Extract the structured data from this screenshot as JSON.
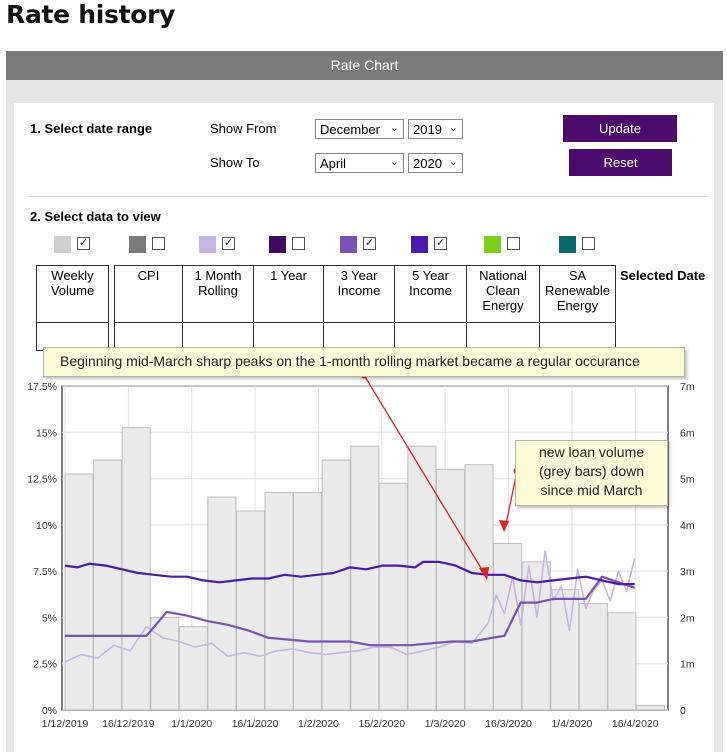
{
  "page_title": "Rate history",
  "panel_title": "Rate Chart",
  "controls": {
    "step1_label": "1. Select date range",
    "show_from_label": "Show From",
    "show_to_label": "Show To",
    "from_month": "December",
    "from_year": "2019",
    "to_month": "April",
    "to_year": "2020",
    "update_label": "Update",
    "reset_label": "Reset",
    "step2_label": "2. Select data to view"
  },
  "series_toggles": [
    {
      "name": "Weekly Volume",
      "color": "#cfcfcf",
      "checked": true
    },
    {
      "name": "CPI",
      "color": "#7a7a7a",
      "checked": false
    },
    {
      "name": "1 Month Rolling",
      "color": "#c7b6e4",
      "checked": true
    },
    {
      "name": "1 Year",
      "color": "#3f0a63",
      "checked": false
    },
    {
      "name": "3 Year Income",
      "color": "#7a51b6",
      "checked": true
    },
    {
      "name": "5 Year Income",
      "color": "#4a1ab0",
      "checked": true
    },
    {
      "name": "National Clean Energy",
      "color": "#7ccf1a",
      "checked": false
    },
    {
      "name": "SA Renewable Energy",
      "color": "#0a6a6a",
      "checked": false
    }
  ],
  "table_headers": {
    "weekly_volume": [
      "Weekly",
      "Volume"
    ],
    "cpi": [
      "CPI"
    ],
    "one_month": [
      "1 Month",
      "Rolling"
    ],
    "one_year": [
      "1 Year"
    ],
    "three_year": [
      "3 Year",
      "Income"
    ],
    "five_year": [
      "5 Year",
      "Income"
    ],
    "national": [
      "National",
      "Clean",
      "Energy"
    ],
    "sa": [
      "SA",
      "Renewable",
      "Energy"
    ],
    "selected_date": "Selected Date"
  },
  "annotations": {
    "top": "Beginning mid-March sharp peaks on the 1-month rolling market became a regular occurance",
    "side_lines": [
      "new loan volume",
      "(grey bars) down",
      "since mid March"
    ]
  },
  "chart_data": {
    "type": "bar",
    "x_tick_labels": [
      "1/12/2019",
      "16/12/2019",
      "1/1/2020",
      "16/1/2020",
      "1/2/2020",
      "15/2/2020",
      "1/3/2020",
      "16/3/2020",
      "1/4/2020",
      "16/4/2020"
    ],
    "y_left_ticks": [
      "0%",
      "2.5%",
      "5%",
      "7.5%",
      "10%",
      "12.5%",
      "15%",
      "17.5%"
    ],
    "y_right_ticks": [
      "0",
      "1m",
      "2m",
      "3m",
      "4m",
      "5m",
      "6m",
      "7m"
    ],
    "y_left_range": [
      0,
      17.5
    ],
    "y_right_range": [
      0,
      7
    ],
    "grid": true,
    "weekly_volume_m": [
      5.1,
      5.4,
      6.1,
      2.0,
      1.8,
      4.6,
      4.3,
      4.7,
      4.7,
      5.4,
      5.7,
      4.9,
      5.7,
      5.2,
      5.3,
      3.6,
      3.2,
      2.6,
      2.3,
      2.1,
      0.1
    ],
    "series": [
      {
        "name": "5 Year Income",
        "color": "#4a1ab0",
        "x": [
          0,
          3,
          6,
          10,
          14,
          18,
          22,
          26,
          30,
          34,
          38,
          42,
          46,
          50,
          54,
          58,
          62,
          66,
          70,
          74,
          78,
          82,
          86,
          88,
          90,
          92,
          94,
          96,
          100,
          104,
          108,
          112,
          116,
          120,
          124,
          128,
          132,
          136,
          140
        ],
        "y": [
          7.8,
          7.7,
          7.9,
          7.8,
          7.6,
          7.4,
          7.3,
          7.2,
          7.2,
          7.0,
          6.9,
          7.0,
          7.1,
          7.1,
          7.3,
          7.2,
          7.3,
          7.4,
          7.7,
          7.6,
          7.8,
          7.8,
          7.7,
          8.0,
          8.0,
          8.0,
          7.9,
          7.8,
          7.4,
          7.3,
          7.3,
          7.0,
          6.9,
          7.0,
          7.1,
          7.2,
          7.0,
          6.8,
          6.8
        ]
      },
      {
        "name": "3 Year Income",
        "color": "#7a51b6",
        "x": [
          0,
          5,
          10,
          15,
          20,
          25,
          30,
          35,
          40,
          45,
          50,
          55,
          60,
          65,
          70,
          75,
          80,
          85,
          90,
          95,
          100,
          105,
          108,
          112,
          116,
          120,
          124,
          128,
          132,
          136,
          140
        ],
        "y": [
          4.0,
          4.0,
          4.0,
          4.0,
          4.0,
          5.3,
          5.1,
          4.8,
          4.6,
          4.3,
          3.9,
          3.8,
          3.7,
          3.7,
          3.7,
          3.5,
          3.5,
          3.5,
          3.6,
          3.7,
          3.7,
          3.9,
          4.0,
          5.8,
          5.8,
          6.0,
          6.0,
          6.0,
          7.2,
          6.9,
          6.6
        ]
      },
      {
        "name": "1 Month Rolling",
        "color": "#c7b6e4",
        "x": [
          0,
          4,
          8,
          12,
          16,
          20,
          24,
          28,
          32,
          36,
          40,
          44,
          48,
          52,
          56,
          60,
          64,
          68,
          72,
          76,
          80,
          84,
          88,
          92,
          96,
          100,
          104,
          106,
          108,
          110,
          112,
          114,
          116,
          118,
          120,
          122,
          124,
          126,
          128,
          130,
          132,
          134,
          136,
          138,
          140
        ],
        "y": [
          2.6,
          3.0,
          2.8,
          3.5,
          3.2,
          4.5,
          3.9,
          3.7,
          3.4,
          3.6,
          2.9,
          3.1,
          2.9,
          3.2,
          3.3,
          3.1,
          3.0,
          3.1,
          3.2,
          3.4,
          3.4,
          3.0,
          3.2,
          3.4,
          3.7,
          3.6,
          4.7,
          6.2,
          5.2,
          7.2,
          4.6,
          7.8,
          5.0,
          8.6,
          5.9,
          6.7,
          4.3,
          7.6,
          5.5,
          6.5,
          7.0,
          5.9,
          7.5,
          6.4,
          8.2
        ]
      }
    ]
  }
}
